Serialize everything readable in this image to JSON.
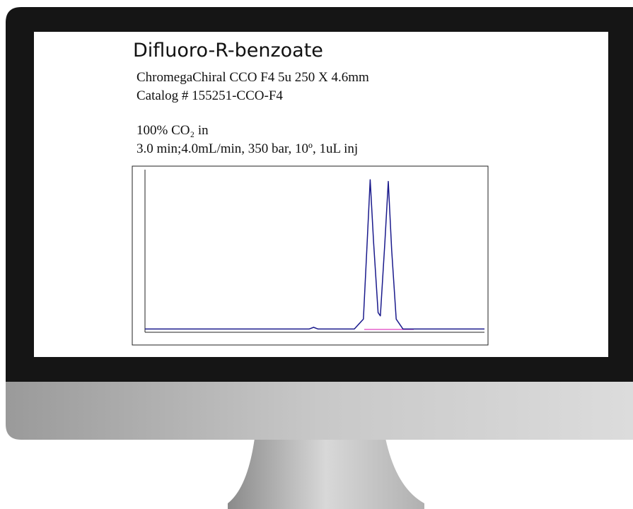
{
  "document": {
    "heading": "Difluoro-R-benzoate",
    "lines": [
      "ChromegaChiral CCO F4 5u 250 X 4.6mm",
      "Catalog # 155251-CCO-F4",
      "100% CO₂ in",
      "3.0 min;4.0mL/min, 350 bar, 10º, 1uL inj"
    ]
  },
  "chart_data": {
    "type": "line",
    "color": "#1a1a8c",
    "x": [
      0,
      0.5,
      1.0,
      1.45,
      1.49,
      1.53,
      1.85,
      1.93,
      1.96,
      1.99,
      2.02,
      2.06,
      2.08,
      2.12,
      2.15,
      2.18,
      2.22,
      2.28,
      2.6,
      3.0
    ],
    "values": [
      2,
      2,
      2,
      2,
      3,
      2,
      2,
      8,
      50,
      93,
      55,
      12,
      10,
      55,
      92,
      50,
      8,
      2,
      2,
      2
    ],
    "xlim": [
      0,
      3
    ],
    "ylim": [
      0,
      100
    ]
  }
}
